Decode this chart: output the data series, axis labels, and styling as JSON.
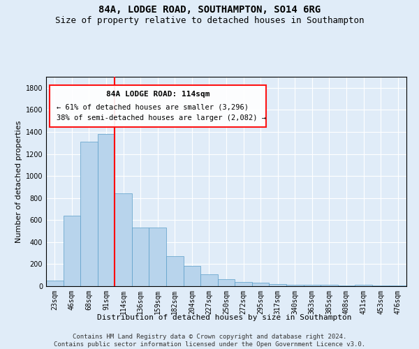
{
  "title": "84A, LODGE ROAD, SOUTHAMPTON, SO14 6RG",
  "subtitle": "Size of property relative to detached houses in Southampton",
  "xlabel": "Distribution of detached houses by size in Southampton",
  "ylabel": "Number of detached properties",
  "categories": [
    "23sqm",
    "46sqm",
    "68sqm",
    "91sqm",
    "114sqm",
    "136sqm",
    "159sqm",
    "182sqm",
    "204sqm",
    "227sqm",
    "250sqm",
    "272sqm",
    "295sqm",
    "317sqm",
    "340sqm",
    "363sqm",
    "385sqm",
    "408sqm",
    "431sqm",
    "453sqm",
    "476sqm"
  ],
  "values": [
    50,
    640,
    1310,
    1380,
    840,
    530,
    530,
    270,
    185,
    105,
    65,
    35,
    30,
    20,
    15,
    10,
    10,
    5,
    15,
    5,
    5
  ],
  "bar_color": "#b8d4ec",
  "bar_edge_color": "#5a9ec8",
  "red_line_index": 4,
  "annotation_line1": "84A LODGE ROAD: 114sqm",
  "annotation_line2": "← 61% of detached houses are smaller (3,296)",
  "annotation_line3": "38% of semi-detached houses are larger (2,082) →",
  "ylim": [
    0,
    1900
  ],
  "yticks": [
    0,
    200,
    400,
    600,
    800,
    1000,
    1200,
    1400,
    1600,
    1800
  ],
  "footnote": "Contains HM Land Registry data © Crown copyright and database right 2024.\nContains public sector information licensed under the Open Government Licence v3.0.",
  "background_color": "#e0ecf8",
  "plot_bg_color": "#e0ecf8",
  "grid_color": "#c8d8ec",
  "title_fontsize": 10,
  "subtitle_fontsize": 9,
  "xlabel_fontsize": 8,
  "ylabel_fontsize": 8,
  "tick_fontsize": 7,
  "annotation_fontsize": 8,
  "footnote_fontsize": 6.5
}
